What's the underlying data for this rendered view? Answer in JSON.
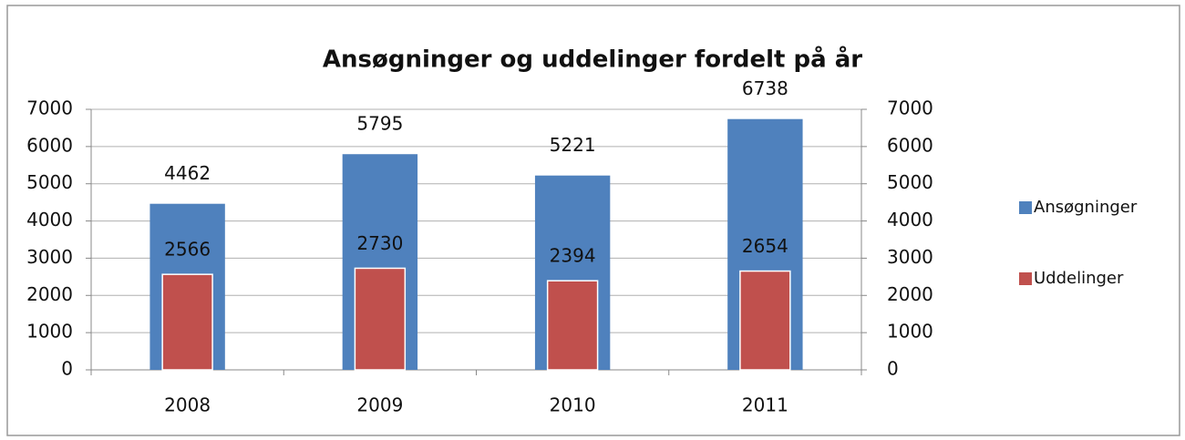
{
  "chart_data": {
    "type": "bar",
    "title": "Ansøgninger og uddelinger fordelt på år",
    "categories": [
      "2008",
      "2009",
      "2010",
      "2011"
    ],
    "series": [
      {
        "name": "Ansøgninger",
        "color": "#4f81bd",
        "values": [
          4462,
          5795,
          5221,
          6738
        ]
      },
      {
        "name": "Uddelinger",
        "color": "#c0504d",
        "values": [
          2566,
          2730,
          2394,
          2654
        ],
        "axis": "y2"
      }
    ],
    "ylim": [
      0,
      7000
    ],
    "yticks": [
      0,
      1000,
      2000,
      3000,
      4000,
      5000,
      6000,
      7000
    ],
    "y2lim": [
      0,
      7000
    ],
    "y2ticks": [
      0,
      1000,
      2000,
      3000,
      4000,
      5000,
      6000,
      7000
    ],
    "grid": true,
    "legend": "right"
  }
}
